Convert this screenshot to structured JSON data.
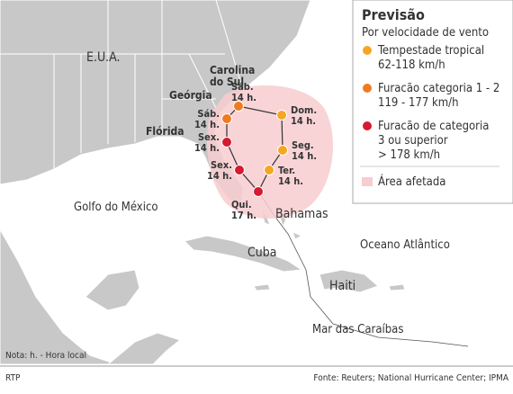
{
  "legend": {
    "title": "Previsão",
    "subtitle": "Por velocidade de vento",
    "items": [
      {
        "color": "#f5a623",
        "lines": [
          "Tempestade tropical",
          "62-118 km/h"
        ]
      },
      {
        "color": "#ee7b22",
        "lines": [
          "Furacão categoria 1 - 2",
          "119 -  177 km/h"
        ]
      },
      {
        "color": "#d61a2f",
        "lines": [
          "Furacão de categoria",
          "3 ou superior",
          "> 178 km/h"
        ]
      }
    ],
    "area": {
      "color": "#f7cdd0",
      "label": "Área afetada"
    }
  },
  "places": [
    [
      "E.U.A."
    ],
    [
      "Carolina",
      "do Sul"
    ],
    [
      "Geórgia"
    ],
    [
      "Flórida"
    ],
    [
      "Golfo do México"
    ],
    [
      "Bahamas"
    ],
    [
      "Cuba"
    ],
    [
      "Oceano Atlântico"
    ],
    [
      "Haiti"
    ],
    [
      "Mar das Caraíbas"
    ]
  ],
  "track": [
    {
      "day": "Qui.",
      "time": "17 h.",
      "color": "#d61a2f"
    },
    {
      "day": "Sex.",
      "time": "14 h.",
      "color": "#d61a2f"
    },
    {
      "day": "Sex.",
      "time": "14 h.",
      "color": "#d61a2f"
    },
    {
      "day": "Sáb.",
      "time": "14 h.",
      "color": "#ee7b22"
    },
    {
      "day": "Sáb.",
      "time": "14 h.",
      "color": "#ee7b22"
    },
    {
      "day": "Dom.",
      "time": "14 h.",
      "color": "#f5a623"
    },
    {
      "day": "Seg.",
      "time": "14 h.",
      "color": "#f5a623"
    },
    {
      "day": "Ter.",
      "time": "14 h.",
      "color": "#f5a623"
    }
  ],
  "note": "Nota: h. - Hora local",
  "credit": "RTP",
  "source": "Fonte: Reuters; National Hurricane Center; IPMA"
}
